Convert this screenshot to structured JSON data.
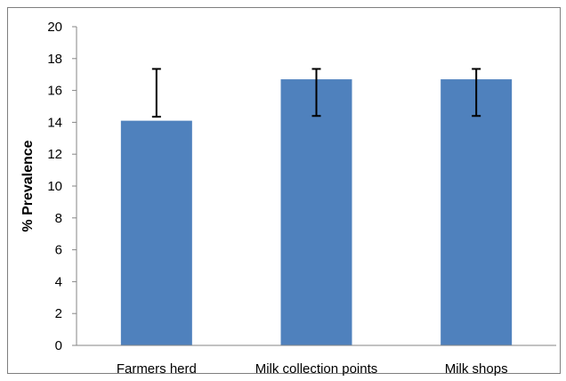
{
  "chart_data": {
    "type": "bar",
    "title": "",
    "xlabel": "",
    "ylabel": "% Prevalence",
    "categories": [
      "Farmers herd",
      "Milk collection points",
      "Milk shops"
    ],
    "values": [
      14.1,
      16.7,
      16.7
    ],
    "error_low": [
      14.35,
      14.4,
      14.4
    ],
    "error_high": [
      17.35,
      17.35,
      17.35
    ],
    "ylim": [
      0,
      20
    ],
    "yticks": [
      "0",
      "2",
      "4",
      "6",
      "8",
      "10",
      "12",
      "14",
      "16",
      "18",
      "20"
    ],
    "grid": false,
    "legend": "none",
    "bar_color": "#4f81bd",
    "error_color": "#000000"
  }
}
